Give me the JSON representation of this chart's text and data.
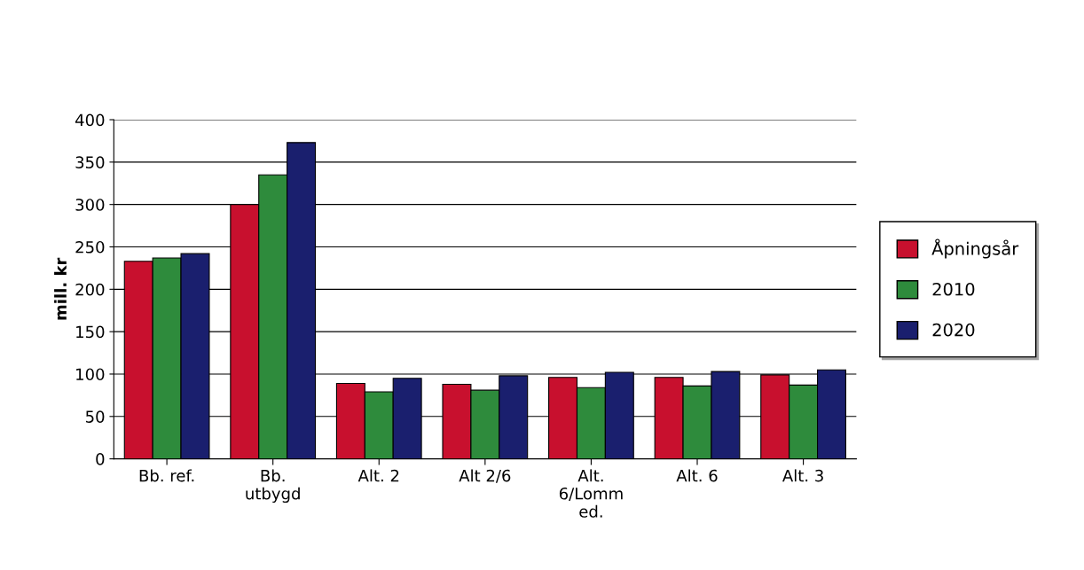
{
  "chart_data": {
    "type": "bar",
    "ylabel": "mill. kr",
    "categories": [
      "Bb. ref.",
      "Bb.\nutbygd",
      "Alt. 2",
      "Alt 2/6",
      "Alt.\n6/Lomm\ned.",
      "Alt. 6",
      "Alt. 3"
    ],
    "series": [
      {
        "name": "Åpningsår",
        "color": "#c8102e",
        "values": [
          233,
          300,
          89,
          88,
          96,
          96,
          99
        ]
      },
      {
        "name": "2010",
        "color": "#2e8b3c",
        "values": [
          237,
          335,
          79,
          81,
          84,
          86,
          87
        ]
      },
      {
        "name": "2020",
        "color": "#1a1f6e",
        "values": [
          242,
          373,
          95,
          98,
          102,
          103,
          105
        ]
      }
    ],
    "ylim": [
      0,
      400
    ],
    "yticks": [
      0,
      50,
      100,
      150,
      200,
      250,
      300,
      350,
      400
    ],
    "grid": "y",
    "legend": "right"
  }
}
